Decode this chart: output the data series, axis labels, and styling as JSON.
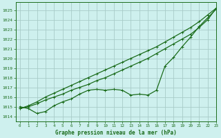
{
  "title": "Graphe pression niveau de la mer (hPa)",
  "bg_color": "#cef0ee",
  "grid_color": "#a8ccc8",
  "line_color": "#1a6b1a",
  "xlim": [
    -0.5,
    23
  ],
  "ylim": [
    1013.5,
    1025.8
  ],
  "yticks": [
    1014,
    1015,
    1016,
    1017,
    1018,
    1019,
    1020,
    1021,
    1022,
    1023,
    1024,
    1025
  ],
  "xticks": [
    0,
    1,
    2,
    3,
    4,
    5,
    6,
    7,
    8,
    9,
    10,
    11,
    12,
    13,
    14,
    15,
    16,
    17,
    18,
    19,
    20,
    21,
    22,
    23
  ],
  "series_measured": [
    1015.0,
    1014.8,
    1014.3,
    1014.5,
    1015.1,
    1015.5,
    1015.8,
    1016.3,
    1016.7,
    1016.8,
    1016.7,
    1016.8,
    1016.7,
    1016.2,
    1016.3,
    1016.2,
    1016.7,
    1019.2,
    1020.1,
    1021.2,
    1022.2,
    1023.3,
    1024.2,
    1025.1
  ],
  "series_forecast1": [
    1014.8,
    1015.0,
    1015.3,
    1015.7,
    1016.0,
    1016.3,
    1016.7,
    1017.0,
    1017.3,
    1017.7,
    1018.0,
    1018.4,
    1018.8,
    1019.2,
    1019.6,
    1020.0,
    1020.5,
    1021.0,
    1021.5,
    1022.0,
    1022.5,
    1023.2,
    1024.0,
    1025.2
  ],
  "series_forecast2": [
    1014.8,
    1015.1,
    1015.5,
    1016.0,
    1016.4,
    1016.8,
    1017.2,
    1017.6,
    1018.0,
    1018.4,
    1018.8,
    1019.2,
    1019.6,
    1020.0,
    1020.4,
    1020.8,
    1021.2,
    1021.7,
    1022.2,
    1022.7,
    1023.2,
    1023.8,
    1024.5,
    1025.2
  ]
}
